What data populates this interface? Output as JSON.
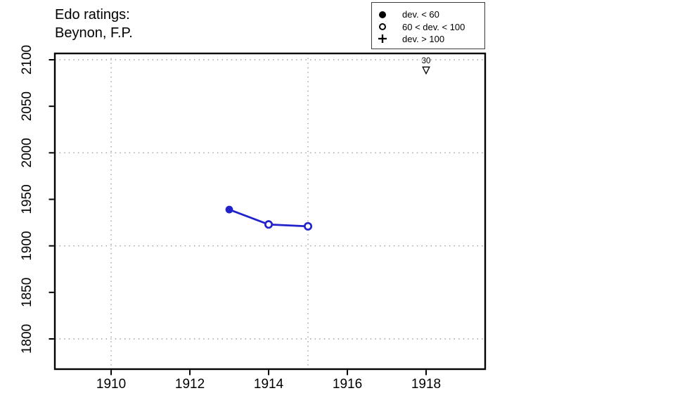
{
  "title": {
    "line1": "Edo ratings:",
    "line2": "Beynon, F.P."
  },
  "legend": {
    "items": [
      {
        "icon": "filled-circle",
        "label": "dev. < 60"
      },
      {
        "icon": "open-circle",
        "label": "60 < dev. < 100"
      },
      {
        "icon": "plus",
        "label": "dev. > 100"
      }
    ]
  },
  "chart_data": {
    "type": "line",
    "title": "Edo ratings: Beynon, F.P.",
    "xlabel": "",
    "ylabel": "",
    "x_ticks": [
      1910,
      1912,
      1914,
      1916,
      1918
    ],
    "y_ticks": [
      1800,
      1850,
      1900,
      1950,
      2000,
      2050,
      2100
    ],
    "xlim": [
      1908.57,
      1919.5
    ],
    "ylim": [
      1767.5,
      2106.8
    ],
    "grid": {
      "on": true,
      "style": "dotted",
      "color": "#9c9c9c",
      "x_lines": [
        1910,
        1915
      ],
      "y_lines": [
        1800,
        1900,
        2000,
        2100
      ]
    },
    "legend_position": "top-right",
    "series": [
      {
        "name": "Edo rating",
        "color": "#2222cc",
        "points": [
          {
            "x": 1913,
            "y": 1939,
            "marker": "filled-circle",
            "deviation": "dev. < 60"
          },
          {
            "x": 1914,
            "y": 1923,
            "marker": "open-circle",
            "deviation": "60 < dev. < 100"
          },
          {
            "x": 1915,
            "y": 1921,
            "marker": "open-circle",
            "deviation": "60 < dev. < 100"
          }
        ]
      }
    ],
    "annotations": [
      {
        "x": 1918,
        "label": "30",
        "marker": "open-down-triangle",
        "position": "top"
      }
    ]
  }
}
